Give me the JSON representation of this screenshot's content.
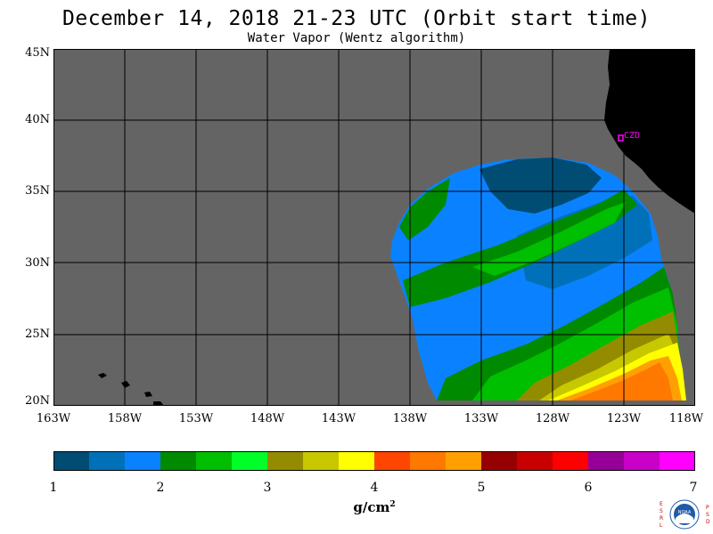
{
  "title": "December 14, 2018  21-23 UTC  (Orbit start time)",
  "subtitle": "Water Vapor (Wentz algorithm)",
  "lat_labels": [
    "45N",
    "40N",
    "35N",
    "30N",
    "25N",
    "20N"
  ],
  "lon_labels": [
    "163W",
    "158W",
    "153W",
    "148W",
    "143W",
    "138W",
    "133W",
    "128W",
    "123W",
    "118W"
  ],
  "station_label": "CZD",
  "colorbar": {
    "ticks": [
      "1",
      "2",
      "3",
      "4",
      "5",
      "6",
      "7"
    ],
    "units_base": "g/cm",
    "units_exp": "2",
    "colors": [
      "#004c73",
      "#0071b8",
      "#0a82ff",
      "#008a00",
      "#00be00",
      "#00ff28",
      "#948c00",
      "#c8c800",
      "#ffff00",
      "#ff4600",
      "#ff7800",
      "#ffa000",
      "#960000",
      "#c80000",
      "#ff0000",
      "#960096",
      "#c800c8",
      "#ff00ff"
    ]
  },
  "colors": {
    "ocean_no_data": "#646464",
    "land": "#000000",
    "gridline": "#000000",
    "station": "#ff00ff"
  },
  "logo_letters_left": [
    "E",
    "S",
    "R",
    "L"
  ],
  "logo_letters_right": [
    "P",
    "S",
    "D"
  ],
  "logo_text": "NOAA"
}
